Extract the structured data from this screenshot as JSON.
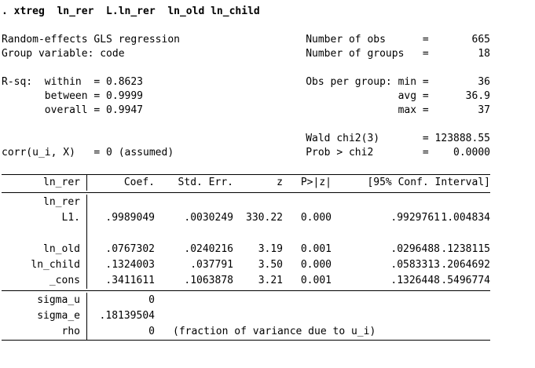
{
  "colors": {
    "text": "#000000",
    "background": "#ffffff"
  },
  "command": ". xtreg  ln_rer  L.ln_rer  ln_old ln_child",
  "summary_rows": [
    {
      "left": "Random-effects GLS regression",
      "right": "Number of obs      =       665"
    },
    {
      "left": "Group variable: code",
      "right": "Number of groups   =        18"
    },
    {
      "left": "",
      "right": ""
    },
    {
      "left": "R-sq:  within  = 0.8623",
      "right": "Obs per group: min =        36"
    },
    {
      "left": "       between = 0.9999",
      "right": "               avg =      36.9"
    },
    {
      "left": "       overall = 0.9947",
      "right": "               max =        37"
    },
    {
      "left": "",
      "right": ""
    },
    {
      "left": "",
      "right": "Wald chi2(3)       = 123888.55"
    },
    {
      "left": "corr(u_i, X)   = 0 (assumed)",
      "right": "Prob > chi2        =    0.0000"
    }
  ],
  "coef_table": {
    "depvar": "ln_rer",
    "headers": {
      "coef": "Coef.",
      "se": "Std. Err.",
      "z": "z",
      "p": "P>|z|",
      "ci": "[95% Conf. Interval]"
    },
    "rows": [
      {
        "var": "ln_rer",
        "coef": "",
        "se": "",
        "z": "",
        "p": "",
        "ci_low": "",
        "ci_high": ""
      },
      {
        "var": "L1.",
        "coef": ".9989049",
        "se": ".0030249",
        "z": "330.22",
        "p": "0.000",
        "ci_low": ".9929761",
        "ci_high": "1.004834"
      },
      {
        "var": "",
        "coef": "",
        "se": "",
        "z": "",
        "p": "",
        "ci_low": "",
        "ci_high": ""
      },
      {
        "var": "ln_old",
        "coef": ".0767302",
        "se": ".0240216",
        "z": "3.19",
        "p": "0.001",
        "ci_low": ".0296488",
        "ci_high": ".1238115"
      },
      {
        "var": "ln_child",
        "coef": ".1324003",
        "se": ".037791",
        "z": "3.50",
        "p": "0.000",
        "ci_low": ".0583313",
        "ci_high": ".2064692"
      },
      {
        "var": "_cons",
        "coef": ".3411611",
        "se": ".1063878",
        "z": "3.21",
        "p": "0.001",
        "ci_low": ".1326448",
        "ci_high": ".5496774"
      }
    ],
    "variance_rows": [
      {
        "var": "sigma_u",
        "value": "0",
        "note": ""
      },
      {
        "var": "sigma_e",
        "value": ".18139504",
        "note": ""
      },
      {
        "var": "rho",
        "value": "0",
        "note": "(fraction of variance due to u_i)"
      }
    ]
  }
}
